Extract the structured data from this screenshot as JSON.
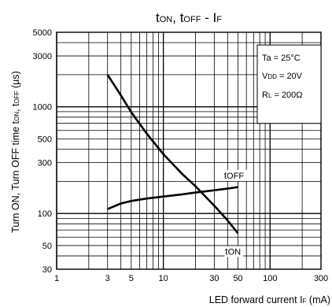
{
  "chart_data": {
    "type": "line",
    "title": {
      "t": "t",
      "on": "ON",
      "sep": ", ",
      "t2": "t",
      "off": "OFF",
      "dash": " - ",
      "i": "I",
      "f": "F"
    },
    "xlabel": {
      "pre": "LED forward current I",
      "sub": "F",
      "unit": " (mA)"
    },
    "ylabel": "Turn ON, Turn OFF time tₒₙ, tₒₔₔ (µs)",
    "ylabel_parts": {
      "pre": "Turn ON, Turn OFF time t",
      "on": "ON",
      "mid": ", t",
      "off": "OFF",
      "unit": " (µs)"
    },
    "x_scale": "log",
    "y_scale": "log",
    "xlim": [
      1,
      300
    ],
    "ylim": [
      30,
      5000
    ],
    "x_ticks": [
      1,
      3,
      5,
      10,
      30,
      50,
      100,
      300
    ],
    "x_tick_labels": [
      "1",
      "3",
      "5",
      "10",
      "30",
      "50",
      "100",
      "300"
    ],
    "y_ticks": [
      30,
      50,
      100,
      300,
      500,
      1000,
      3000,
      5000
    ],
    "y_tick_labels": [
      "30",
      "50",
      "100",
      "300",
      "500",
      "1000",
      "3000",
      "5000"
    ],
    "grid": true,
    "conditions": [
      {
        "pre": "Ta = 25°C",
        "sub": "",
        "post": ""
      },
      {
        "pre": "V",
        "sub": "DD",
        "post": " = 20V"
      },
      {
        "pre": "R",
        "sub": "L",
        "post": " = 200Ω"
      }
    ],
    "series": [
      {
        "name": "tON",
        "label_t": "t",
        "label_sub": "ON",
        "x": [
          3,
          4,
          5,
          7,
          10,
          15,
          20,
          30,
          40,
          50
        ],
        "y": [
          2000,
          1280,
          890,
          560,
          360,
          235,
          180,
          118,
          86,
          65
        ]
      },
      {
        "name": "tOFF",
        "label_t": "t",
        "label_sub": "OFF",
        "x": [
          3,
          4,
          5,
          7,
          10,
          15,
          20,
          30,
          40,
          50
        ],
        "y": [
          110,
          124,
          131,
          138,
          144,
          151,
          157,
          165,
          171,
          177
        ]
      }
    ]
  }
}
